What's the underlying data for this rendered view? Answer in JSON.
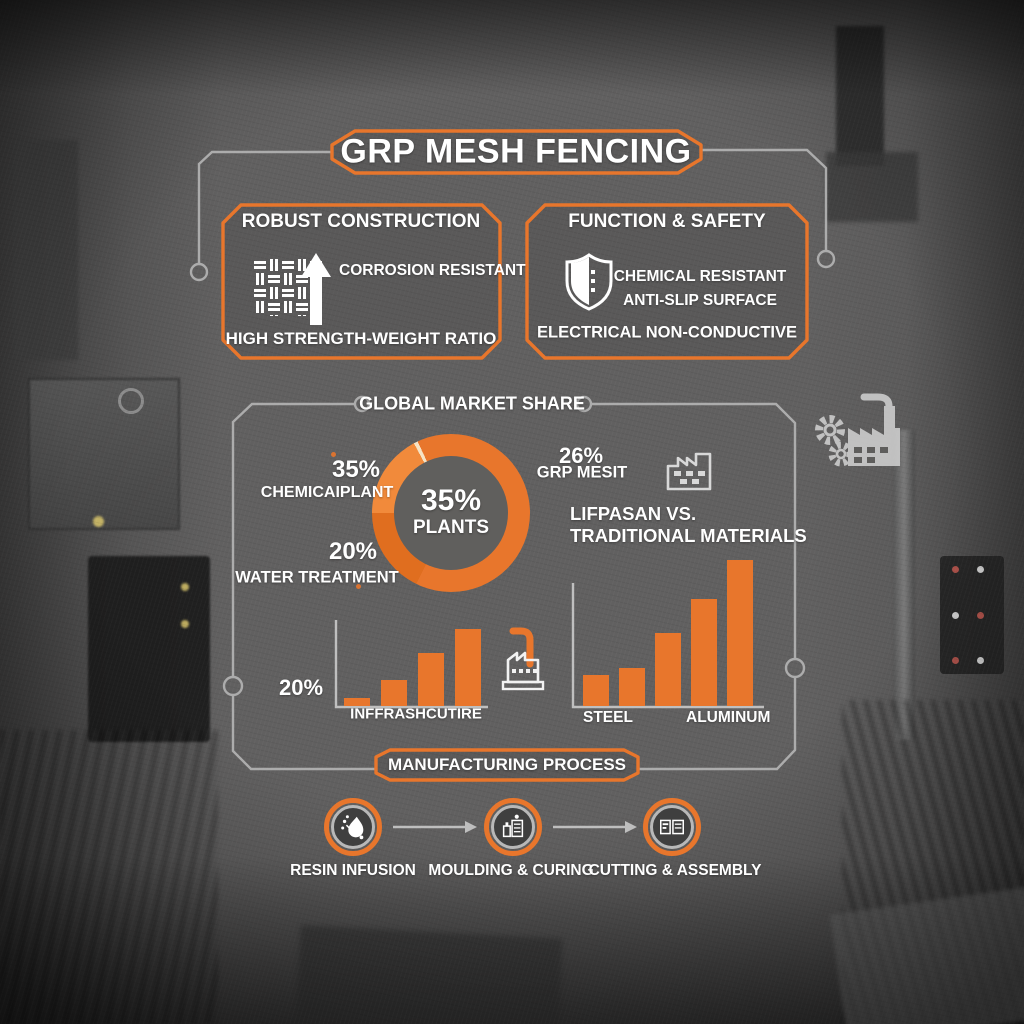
{
  "title": "GRP MESH FENCING",
  "feature_boxes": {
    "robust": {
      "title": "ROBUST CONSTRUCTION",
      "icon": "mesh-grid-icon",
      "arrow_icon": "arrow-up-icon",
      "feature": "CORROSION RESISTANT",
      "footer": "HIGH STRENGTH-WEIGHT RATIO"
    },
    "safety": {
      "title": "FUNCTION & SAFETY",
      "icon": "shield-icon",
      "feature_1": "CHEMICAL RESISTANT",
      "feature_2": "ANTI-SLIP SURFACE",
      "footer": "ELECTRICAL NON-CONDUCTIVE"
    }
  },
  "market_section": {
    "heading": "GLOBAL MARKET SHARE",
    "donut": {
      "center_pct": "35%",
      "center_label": "PLANTS"
    },
    "label_chemical": {
      "pct": "35%",
      "name": "CHEMICAIPLANT"
    },
    "label_water": {
      "pct": "20%",
      "name": "WATER TREATMENT"
    },
    "label_grp": {
      "pct": "26%",
      "name": "GRP MESIT"
    },
    "comparison_line1": "LIFPASAN VS.",
    "comparison_line2": "TRADITIONAL MATERIALS",
    "infra_chart": {
      "pct": "20%",
      "caption": "INFFRASHCUTIRE"
    },
    "materials_chart": {
      "label_left": "STEEL",
      "label_right": "ALUMINUM"
    },
    "icons": [
      "factory-outline-icon",
      "factory-chimney-icon",
      "factory-gears-icon"
    ]
  },
  "process_section": {
    "heading": "MANUFACTURING PROCESS",
    "steps": [
      {
        "label": "RESIN INFUSION",
        "icon": "resin-infusion-icon"
      },
      {
        "label": "MOULDING & CURING",
        "icon": "moulding-curing-icon"
      },
      {
        "label": "CUTTING & ASSEMBLY",
        "icon": "cutting-assembly-icon"
      }
    ]
  },
  "colors": {
    "accent": "#E8762C",
    "accent_light": "#F18A3B",
    "divider_cream": "#F6E3C4",
    "line_gray": "#BDBDBD",
    "text": "#FFFFFF"
  },
  "chart_data": [
    {
      "type": "pie",
      "style": "donut",
      "title": "GLOBAL MARKET SHARE",
      "labels": [
        "PLANTS",
        "CHEMICAIPLANT",
        "WATER TREATMENT",
        "GRP MESIT"
      ],
      "values": [
        35,
        35,
        20,
        26
      ],
      "center_text": "35% PLANTS",
      "legend_position": "around"
    },
    {
      "type": "bar",
      "title": "INFFRASHCUTIRE",
      "annotation": "20%",
      "categories": [
        "",
        "",
        "",
        ""
      ],
      "values": [
        8,
        26,
        53,
        77
      ],
      "ylabel": "",
      "grid": false
    },
    {
      "type": "bar",
      "title": "LIFPASAN VS. TRADITIONAL MATERIALS",
      "categories": [
        "STEEL",
        "",
        "",
        "ALUMINUM",
        ""
      ],
      "values": [
        31,
        38,
        73,
        107,
        146
      ],
      "ylabel": "",
      "grid": false
    }
  ]
}
